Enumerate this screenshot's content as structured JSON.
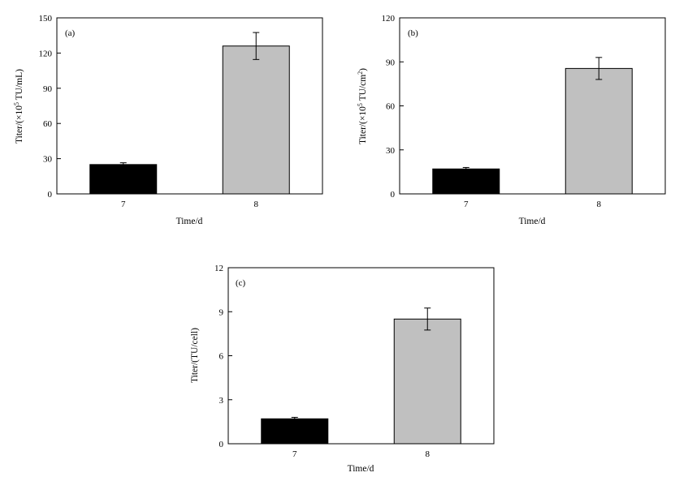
{
  "chart_data": [
    {
      "type": "bar",
      "panel_label": "(a)",
      "categories": [
        "7",
        "8"
      ],
      "values": [
        25,
        126
      ],
      "errors": [
        1.5,
        11.5
      ],
      "colors": [
        "#000000",
        "#c0c0c0"
      ],
      "ylabel_pre": "Titer/(×10",
      "ylabel_sup": "5",
      "ylabel_post": " TU/mL)",
      "xlabel": "Time/d",
      "ylim": [
        0,
        150
      ],
      "yticks": [
        "0",
        "30",
        "60",
        "90",
        "120",
        "150"
      ],
      "grid": false
    },
    {
      "type": "bar",
      "panel_label": "(b)",
      "categories": [
        "7",
        "8"
      ],
      "values": [
        17,
        85.5
      ],
      "errors": [
        1,
        7.5
      ],
      "colors": [
        "#000000",
        "#c0c0c0"
      ],
      "ylabel_pre": "Titer/(×10",
      "ylabel_sup": "5",
      "ylabel_post": " TU/cm",
      "ylabel_sup2": "2",
      "ylabel_post2": ")",
      "xlabel": "Time/d",
      "ylim": [
        0,
        120
      ],
      "yticks": [
        "0",
        "30",
        "60",
        "90",
        "120"
      ],
      "grid": false
    },
    {
      "type": "bar",
      "panel_label": "(c)",
      "categories": [
        "7",
        "8"
      ],
      "values": [
        1.7,
        8.5
      ],
      "errors": [
        0.1,
        0.75
      ],
      "colors": [
        "#000000",
        "#c0c0c0"
      ],
      "ylabel_pre": "Titer/(TU/cell)",
      "xlabel": "Time/d",
      "ylim": [
        0,
        12
      ],
      "yticks": [
        "0",
        "3",
        "6",
        "9",
        "12"
      ],
      "grid": false
    }
  ]
}
